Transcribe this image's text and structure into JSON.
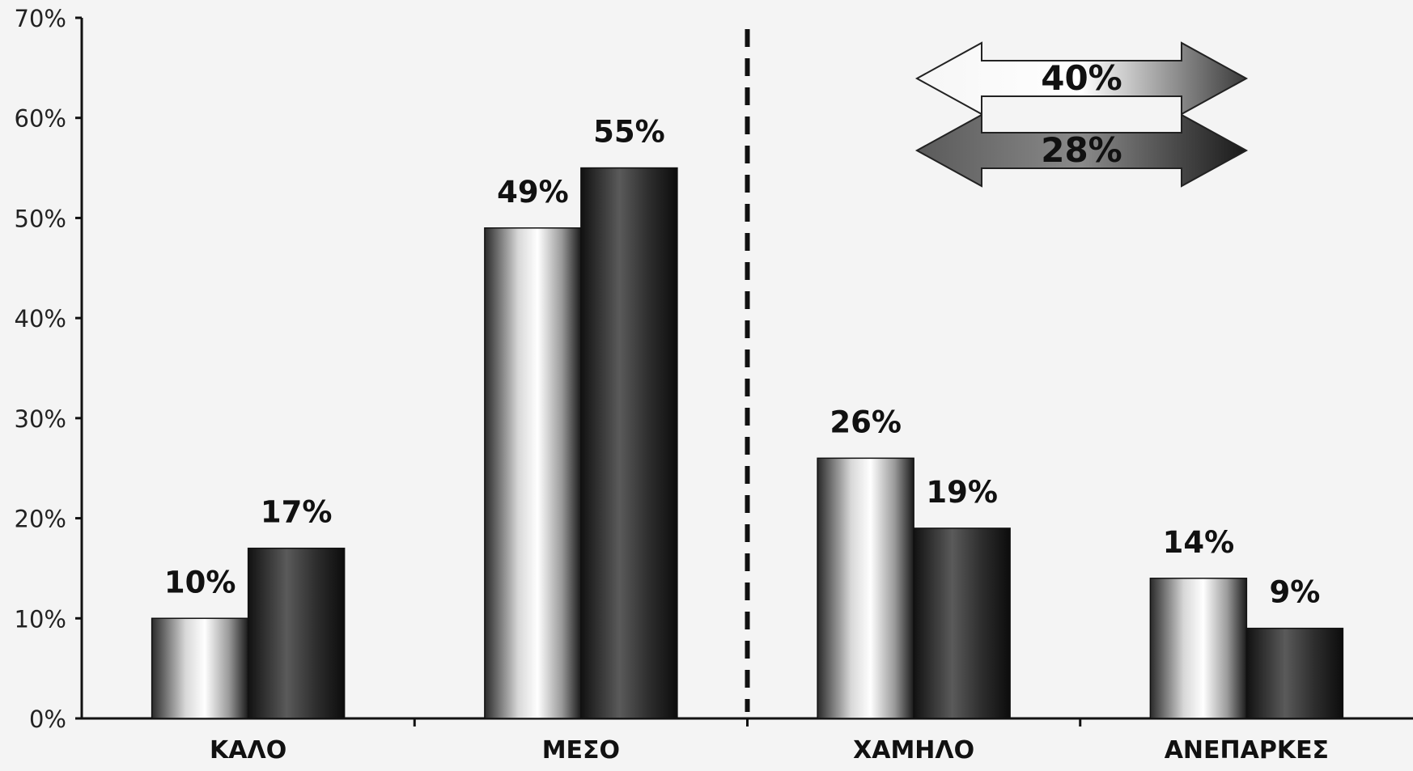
{
  "chart_data": {
    "type": "bar",
    "categories": [
      "ΚΑΛΟ",
      "ΜΕΣΟ",
      "ΧΑΜΗΛΟ",
      "ΑΝΕΠΑΡΚΕΣ"
    ],
    "series": [
      {
        "values": [
          10,
          49,
          26,
          14
        ],
        "data_labels": [
          "10%",
          "49%",
          "26%",
          "14%"
        ],
        "fill": "light-gradient"
      },
      {
        "values": [
          17,
          55,
          19,
          9
        ],
        "data_labels": [
          "17%",
          "55%",
          "19%",
          "9%"
        ],
        "fill": "dark-gradient"
      }
    ],
    "ylim": [
      0,
      70
    ],
    "yticks": [
      0,
      10,
      20,
      30,
      40,
      50,
      60,
      70
    ],
    "ytick_labels": [
      "0%",
      "10%",
      "20%",
      "30%",
      "40%",
      "50%",
      "60%",
      "70%"
    ],
    "separator": {
      "after_category_index": 1,
      "style": "dashed"
    },
    "annotations": [
      {
        "text": "40%",
        "shape": "double-arrow",
        "fill": "light-gradient"
      },
      {
        "text": "28%",
        "shape": "double-arrow",
        "fill": "dark-gradient"
      }
    ],
    "grid": false,
    "legend": "none",
    "colors": {
      "light": "#e6e6e6",
      "dark": "#2a2a2a",
      "axis": "#111111"
    }
  }
}
